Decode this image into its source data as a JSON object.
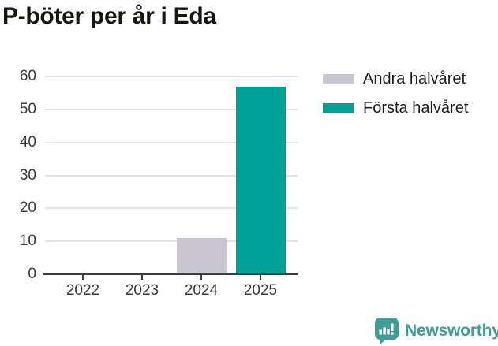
{
  "title": "P-böter per år i Eda",
  "chart_data": {
    "type": "bar",
    "title": "P-böter per år i Eda",
    "categories": [
      "2022",
      "2023",
      "2024",
      "2025"
    ],
    "series": [
      {
        "name": "Andra halvåret",
        "color": "#c9c6d1",
        "values": [
          0,
          0,
          11,
          0
        ]
      },
      {
        "name": "Första halvåret",
        "color": "#00a298",
        "values": [
          0,
          0,
          0,
          57
        ]
      }
    ],
    "xlabel": "",
    "ylabel": "",
    "ylim": [
      0,
      60
    ],
    "yticks": [
      0,
      10,
      20,
      30,
      40,
      50,
      60
    ],
    "grid": true,
    "legend_position": "upper right"
  },
  "footer": {
    "brand": "Newsworthy",
    "brand_color": "#3f9c97",
    "logo_icon": "bar-chart-speech-bubble-icon"
  },
  "colors": {
    "bar_teal": "#00a298",
    "bar_gray": "#c9c6d1",
    "gridline": "#e4e4e4",
    "axis": "#3d3d3d",
    "tick_text": "#3c3c3c",
    "title_text": "#16160f",
    "background": "#ffffff"
  }
}
